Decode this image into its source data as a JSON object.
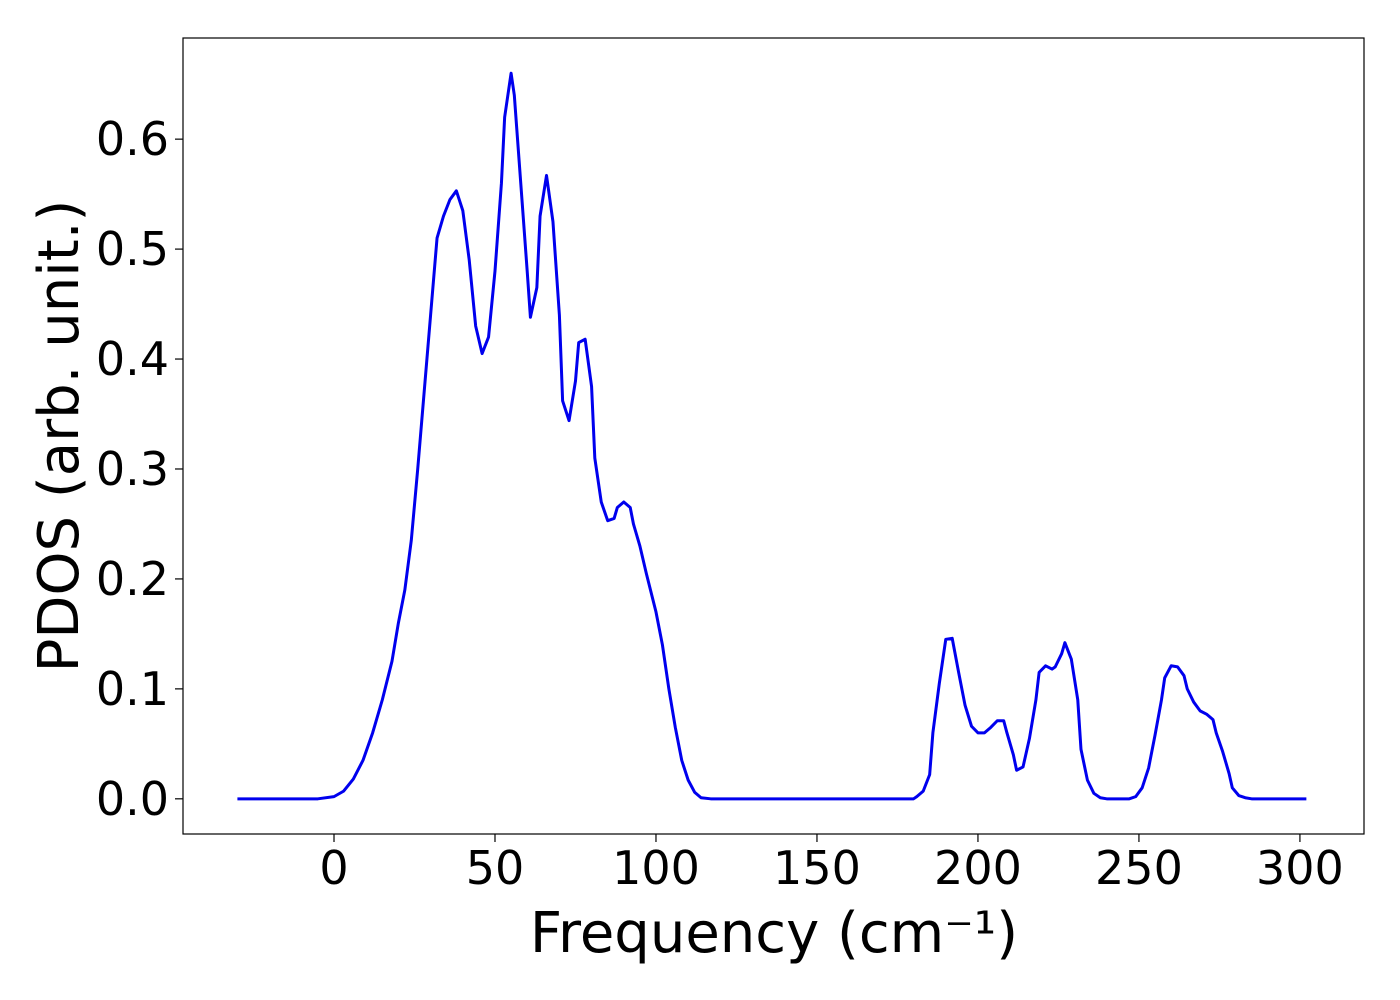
{
  "chart_data": {
    "type": "line",
    "xlabel": "Frequency (cm⁻¹)",
    "ylabel": "PDOS (arb. unit.)",
    "xlim": [
      -46.9,
      319.9
    ],
    "ylim": [
      -0.032,
      0.692
    ],
    "xticks": [
      0,
      50,
      100,
      150,
      200,
      250,
      300
    ],
    "yticks": [
      {
        "value": 0.0,
        "label": "0.0"
      },
      0.1,
      0.2,
      0.3,
      0.4,
      0.5,
      0.6
    ],
    "x": [
      -30,
      -20,
      -10,
      -5,
      0,
      3,
      6,
      9,
      12,
      15,
      18,
      20,
      22,
      24,
      26,
      28,
      30,
      32,
      34,
      36,
      38,
      40,
      42,
      44,
      46,
      48,
      50,
      52,
      53,
      55,
      56,
      58,
      60,
      61,
      63,
      64,
      66,
      68,
      70,
      71,
      73,
      75,
      76,
      78,
      80,
      81,
      83,
      85,
      87,
      88,
      90,
      92,
      93,
      95,
      97,
      100,
      102,
      104,
      106,
      108,
      110,
      112,
      114,
      117,
      150,
      180,
      181,
      183,
      185,
      186,
      188,
      190,
      192,
      194,
      196,
      198,
      200,
      202,
      204,
      206,
      208,
      209,
      211,
      212,
      214,
      216,
      218,
      219,
      221,
      223,
      224,
      226,
      227,
      229,
      231,
      232,
      234,
      236,
      238,
      240,
      247,
      249,
      251,
      253,
      255,
      257,
      258,
      260,
      262,
      264,
      265,
      267,
      269,
      271,
      273,
      274,
      276,
      278,
      279,
      281,
      283,
      285,
      302
    ],
    "series": [
      {
        "color": "#0000ee",
        "values": [
          0,
          0,
          0,
          0,
          0.002,
          0.007,
          0.018,
          0.035,
          0.06,
          0.09,
          0.125,
          0.16,
          0.19,
          0.235,
          0.3,
          0.37,
          0.44,
          0.51,
          0.53,
          0.545,
          0.553,
          0.535,
          0.49,
          0.43,
          0.405,
          0.42,
          0.48,
          0.56,
          0.62,
          0.66,
          0.64,
          0.56,
          0.48,
          0.438,
          0.465,
          0.53,
          0.567,
          0.525,
          0.44,
          0.362,
          0.344,
          0.38,
          0.415,
          0.418,
          0.375,
          0.31,
          0.27,
          0.253,
          0.255,
          0.265,
          0.27,
          0.265,
          0.25,
          0.23,
          0.205,
          0.17,
          0.14,
          0.1,
          0.065,
          0.035,
          0.017,
          0.006,
          0.001,
          0,
          0,
          0,
          0.002,
          0.007,
          0.022,
          0.06,
          0.105,
          0.145,
          0.146,
          0.115,
          0.085,
          0.066,
          0.06,
          0.06,
          0.065,
          0.071,
          0.071,
          0.06,
          0.04,
          0.026,
          0.029,
          0.055,
          0.09,
          0.115,
          0.121,
          0.118,
          0.12,
          0.132,
          0.142,
          0.127,
          0.09,
          0.045,
          0.017,
          0.005,
          0.001,
          0,
          0,
          0.002,
          0.01,
          0.028,
          0.058,
          0.09,
          0.11,
          0.121,
          0.12,
          0.112,
          0.1,
          0.088,
          0.08,
          0.077,
          0.072,
          0.06,
          0.043,
          0.023,
          0.01,
          0.003,
          0.001,
          0,
          0
        ]
      }
    ]
  }
}
